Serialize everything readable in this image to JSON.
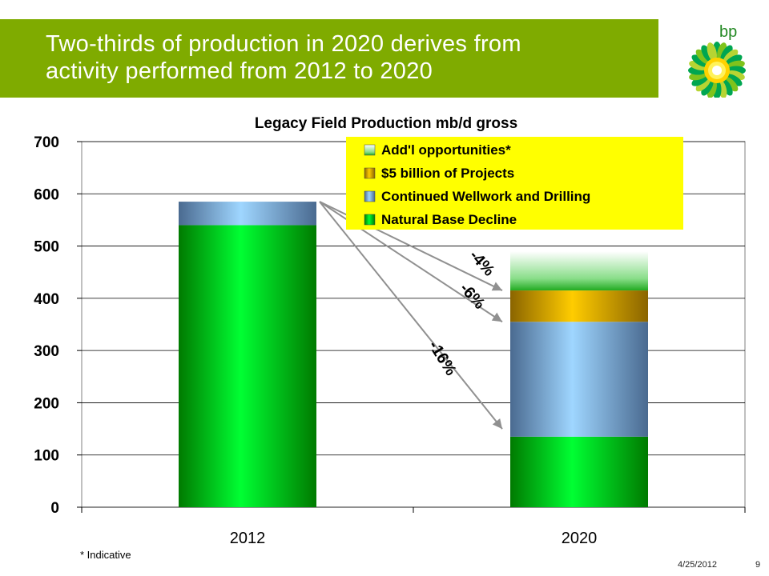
{
  "slide": {
    "title": "Two-thirds of production in 2020 derives from\nactivity performed from 2012 to 2020",
    "logo_text": "bp",
    "footnote": "* Indicative",
    "date": "4/25/2012",
    "page_number": "9"
  },
  "chart_data": {
    "type": "bar",
    "stacked": true,
    "title": "Legacy Field Production mb/d gross",
    "categories": [
      "2012",
      "2020"
    ],
    "ylim": [
      0,
      700
    ],
    "yticks": [
      0,
      100,
      200,
      300,
      400,
      500,
      600,
      700
    ],
    "grid": true,
    "legend_position": "top-right",
    "series": [
      {
        "name": "Natural Base Decline",
        "values": [
          540,
          135
        ],
        "color": "#00cc00"
      },
      {
        "name": "Continued Wellwork and Drilling",
        "values": [
          45,
          220
        ],
        "color": "#8ec8f0"
      },
      {
        "name": "$5 billion of Projects",
        "values": [
          0,
          60
        ],
        "color": "#e8b000"
      },
      {
        "name": "Add'l opportunities*",
        "values": [
          0,
          75
        ],
        "color": "#66cc66"
      }
    ],
    "legend_order": [
      "Add'l opportunities*",
      "$5 billion of Projects",
      "Continued Wellwork and Drilling",
      "Natural Base Decline"
    ],
    "annotations": [
      {
        "text": "-4%",
        "from": [
          0,
          585
        ],
        "to": [
          1,
          415
        ]
      },
      {
        "text": "-6%",
        "from": [
          0,
          585
        ],
        "to": [
          1,
          355
        ]
      },
      {
        "text": "-16%",
        "from": [
          0,
          585
        ],
        "to": [
          1,
          150
        ]
      }
    ]
  }
}
